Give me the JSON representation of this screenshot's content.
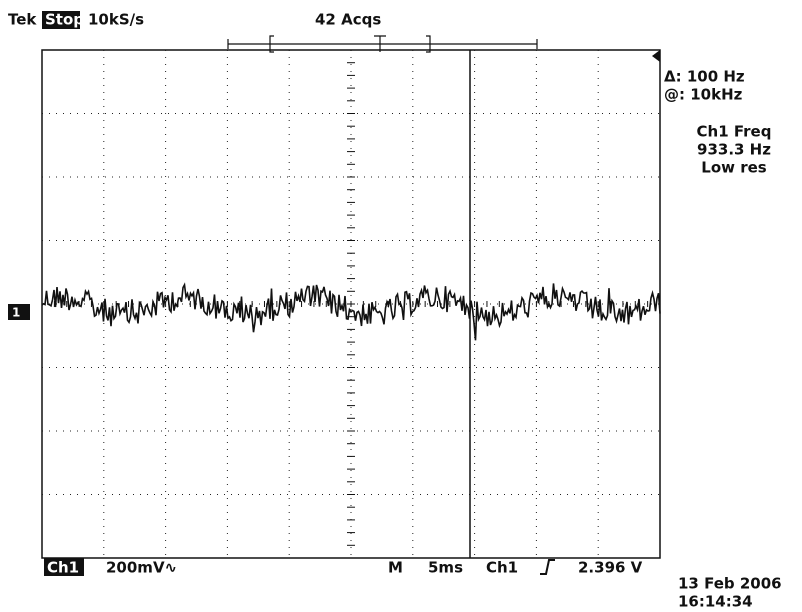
{
  "header": {
    "brand": "Tek",
    "state": "Stop",
    "sample_rate": "10kS/s",
    "acquisitions": "42 Acqs"
  },
  "readout": {
    "delta": "Δ: 100 Hz",
    "at": "@: 10kHz",
    "measurement": "Ch1 Freq",
    "value": "933.3 Hz",
    "mode": "Low res"
  },
  "channel_marker": "1",
  "footer": {
    "channel": "Ch1",
    "scale": "200mV∿",
    "timebase_label": "M",
    "timebase": "5ms",
    "trigger_source": "Ch1",
    "trigger_level": "2.396 V"
  },
  "timestamp": {
    "date": "13 Feb 2006",
    "time": "16:14:34"
  }
}
